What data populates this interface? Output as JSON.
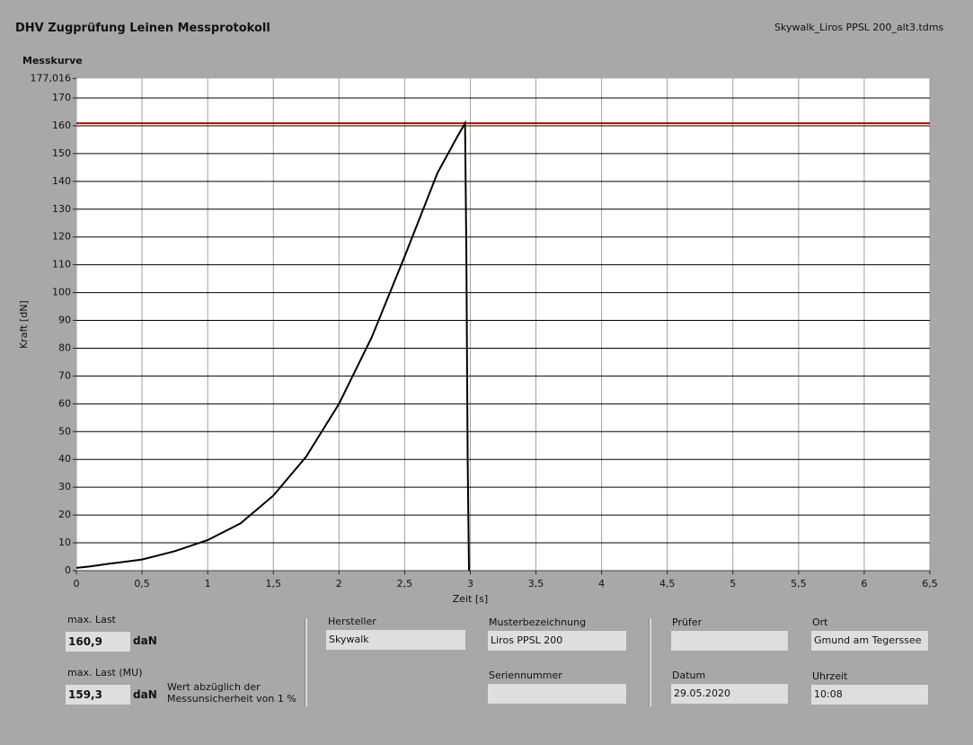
{
  "header": {
    "title": "DHV Zugprüfung Leinen Messprotokoll",
    "file": "Skywalk_Liros PPSL 200_alt3.tdms"
  },
  "chart_data": {
    "type": "line",
    "title": "Messkurve",
    "x_label": "Zeit [s]",
    "y_label": "Kraft [dN]",
    "x": [
      0,
      0.1,
      0.25,
      0.5,
      0.75,
      1,
      1.25,
      1.5,
      1.75,
      2,
      2.25,
      2.5,
      2.75,
      2.9,
      2.96,
      2.97,
      2.98,
      2.99
    ],
    "series": [
      {
        "color": "#000000",
        "values": [
          1,
          1.5,
          2.5,
          4,
          7,
          11,
          17,
          27,
          41,
          60,
          84,
          113,
          143,
          156,
          160.9,
          115,
          40,
          0
        ]
      }
    ],
    "reference_line": {
      "value": 160.9,
      "color": "#c00000"
    },
    "xlim": [
      0,
      6.5
    ],
    "ylim": [
      0,
      177.016
    ],
    "xticks": [
      0,
      {
        "value": 0.5,
        "label": "0,5"
      },
      1,
      {
        "value": 1.5,
        "label": "1,5"
      },
      2,
      {
        "value": 2.5,
        "label": "2,5"
      },
      3,
      {
        "value": 3.5,
        "label": "3,5"
      },
      4,
      {
        "value": 4.5,
        "label": "4,5"
      },
      5,
      {
        "value": 5.5,
        "label": "5,5"
      },
      6,
      {
        "value": 6.5,
        "label": "6,5"
      }
    ],
    "yticks": [
      0,
      10,
      20,
      30,
      40,
      50,
      60,
      70,
      80,
      90,
      100,
      110,
      120,
      130,
      140,
      150,
      160,
      170,
      {
        "value": 177.016,
        "label": "177,016"
      }
    ],
    "grid": true
  },
  "results": [
    {
      "label": "max. Last",
      "value": "160,9",
      "unit": "daN"
    },
    {
      "label": "max. Last (MU)",
      "value": "159,3",
      "unit": "daN",
      "note": [
        "Wert abzüglich der",
        "Messunsicherheit von 1 %"
      ]
    }
  ],
  "info": [
    {
      "label": "Hersteller",
      "value": "Skywalk"
    },
    {
      "label": "Musterbezeichnung",
      "value": "Liros PPSL 200"
    },
    {
      "label": "Seriennummer"
    },
    {
      "label": "Prüfer"
    },
    {
      "label": "Ort",
      "value": "Gmund am Tegerssee"
    },
    {
      "label": "Datum",
      "value": "29.05.2020"
    },
    {
      "label": "Uhrzeit",
      "value": "10:08"
    }
  ]
}
